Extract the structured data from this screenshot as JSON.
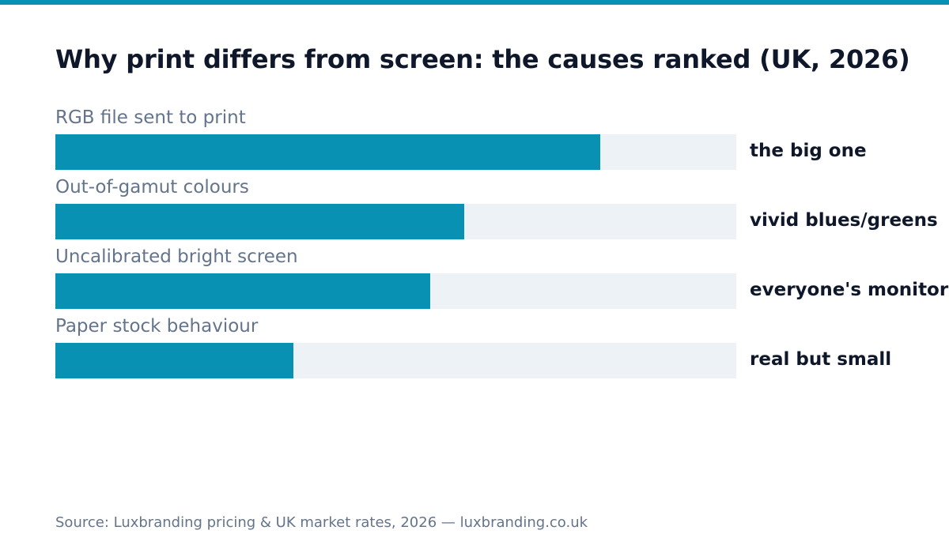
{
  "colors": {
    "accent": "#0891b2",
    "track": "#edf2f7",
    "title": "#0f172a",
    "muted": "#64748b"
  },
  "title": "Why print differs from screen: the causes ranked (UK, 2026)",
  "source": "Source: Luxbranding pricing & UK market rates, 2026 — luxbranding.co.uk",
  "chart_data": {
    "type": "bar",
    "orientation": "horizontal",
    "title": "Why print differs from screen: the causes ranked (UK, 2026)",
    "categories": [
      "RGB file sent to print",
      "Out-of-gamut colours",
      "Uncalibrated bright screen",
      "Paper stock behaviour"
    ],
    "values": [
      0.8,
      0.6,
      0.55,
      0.35
    ],
    "annotations": [
      "the big one",
      "vivid blues/greens",
      "everyone's monitor",
      "real but small"
    ],
    "xlim": [
      0,
      1
    ],
    "grid": false,
    "legend": "none"
  }
}
